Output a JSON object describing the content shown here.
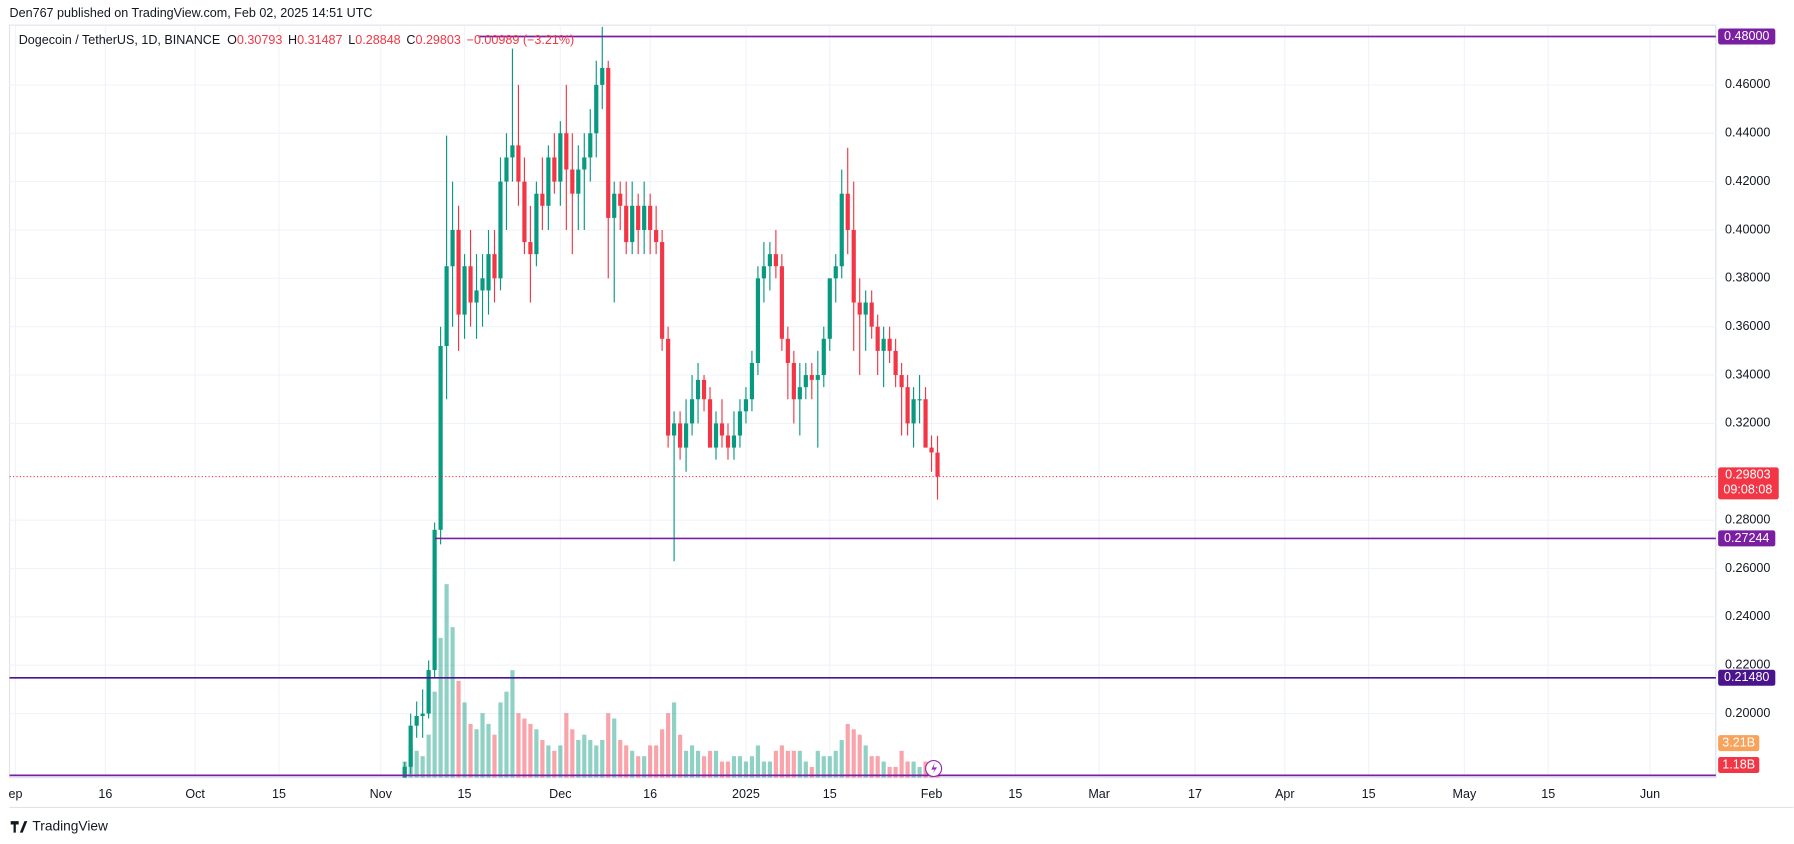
{
  "header": {
    "published": "Den767 published on TradingView.com, Feb 02, 2025 14:51 UTC",
    "symbol": "Dogecoin / TetherUS, 1D, BINANCE",
    "o_key": "O",
    "o_val": "0.30793",
    "h_key": "H",
    "h_val": "0.31487",
    "l_key": "L",
    "l_val": "0.28848",
    "c_key": "C",
    "c_val": "0.29803",
    "change": "−0.00989 (−3.21%)",
    "countdown": "09:08:08",
    "brand": "TradingView"
  },
  "chart_data": {
    "type": "candlestick",
    "up_color": "#089981",
    "down_color": "#f23645",
    "grid": true,
    "x": [
      "2024-11-05",
      "2024-11-06",
      "2024-11-07",
      "2024-11-08",
      "2024-11-09",
      "2024-11-10",
      "2024-11-11",
      "2024-11-12",
      "2024-11-13",
      "2024-11-14",
      "2024-11-15",
      "2024-11-16",
      "2024-11-17",
      "2024-11-18",
      "2024-11-19",
      "2024-11-20",
      "2024-11-21",
      "2024-11-22",
      "2024-11-23",
      "2024-11-24",
      "2024-11-25",
      "2024-11-26",
      "2024-11-27",
      "2024-11-28",
      "2024-11-29",
      "2024-11-30",
      "2024-12-01",
      "2024-12-02",
      "2024-12-03",
      "2024-12-04",
      "2024-12-05",
      "2024-12-06",
      "2024-12-07",
      "2024-12-08",
      "2024-12-09",
      "2024-12-10",
      "2024-12-11",
      "2024-12-12",
      "2024-12-13",
      "2024-12-14",
      "2024-12-15",
      "2024-12-16",
      "2024-12-17",
      "2024-12-18",
      "2024-12-19",
      "2024-12-20",
      "2024-12-21",
      "2024-12-22",
      "2024-12-23",
      "2024-12-24",
      "2024-12-25",
      "2024-12-26",
      "2024-12-27",
      "2024-12-28",
      "2024-12-29",
      "2024-12-30",
      "2024-12-31",
      "2025-01-01",
      "2025-01-02",
      "2025-01-03",
      "2025-01-04",
      "2025-01-05",
      "2025-01-06",
      "2025-01-07",
      "2025-01-08",
      "2025-01-09",
      "2025-01-10",
      "2025-01-11",
      "2025-01-12",
      "2025-01-13",
      "2025-01-14",
      "2025-01-15",
      "2025-01-16",
      "2025-01-17",
      "2025-01-18",
      "2025-01-19",
      "2025-01-20",
      "2025-01-21",
      "2025-01-22",
      "2025-01-23",
      "2025-01-24",
      "2025-01-25",
      "2025-01-26",
      "2025-01-27",
      "2025-01-28",
      "2025-01-29",
      "2025-01-30",
      "2025-01-31",
      "2025-02-01",
      "2025-02-02"
    ],
    "open": [
      0.17,
      0.178,
      0.195,
      0.199,
      0.2,
      0.218,
      0.276,
      0.352,
      0.385,
      0.4,
      0.365,
      0.385,
      0.37,
      0.375,
      0.375,
      0.39,
      0.38,
      0.42,
      0.43,
      0.435,
      0.42,
      0.395,
      0.39,
      0.415,
      0.41,
      0.43,
      0.42,
      0.44,
      0.425,
      0.415,
      0.425,
      0.43,
      0.44,
      0.46,
      0.467,
      0.405,
      0.415,
      0.41,
      0.395,
      0.41,
      0.4,
      0.41,
      0.4,
      0.395,
      0.355,
      0.315,
      0.32,
      0.31,
      0.32,
      0.33,
      0.338,
      0.33,
      0.31,
      0.32,
      0.315,
      0.31,
      0.315,
      0.325,
      0.33,
      0.345,
      0.38,
      0.385,
      0.39,
      0.385,
      0.355,
      0.345,
      0.33,
      0.335,
      0.34,
      0.338,
      0.34,
      0.355,
      0.38,
      0.385,
      0.415,
      0.4,
      0.37,
      0.365,
      0.37,
      0.36,
      0.35,
      0.355,
      0.35,
      0.34,
      0.335,
      0.32,
      0.33,
      0.33,
      0.31,
      0.30793
    ],
    "high": [
      0.18,
      0.2,
      0.205,
      0.21,
      0.222,
      0.279,
      0.36,
      0.439,
      0.42,
      0.41,
      0.39,
      0.4,
      0.39,
      0.39,
      0.4,
      0.4,
      0.43,
      0.44,
      0.475,
      0.46,
      0.43,
      0.41,
      0.42,
      0.43,
      0.435,
      0.44,
      0.445,
      0.46,
      0.44,
      0.435,
      0.44,
      0.45,
      0.47,
      0.484,
      0.47,
      0.42,
      0.42,
      0.42,
      0.42,
      0.415,
      0.42,
      0.415,
      0.41,
      0.4,
      0.36,
      0.325,
      0.325,
      0.33,
      0.34,
      0.345,
      0.34,
      0.335,
      0.325,
      0.33,
      0.32,
      0.325,
      0.33,
      0.335,
      0.35,
      0.385,
      0.395,
      0.395,
      0.4,
      0.39,
      0.36,
      0.35,
      0.345,
      0.345,
      0.345,
      0.35,
      0.36,
      0.38,
      0.39,
      0.425,
      0.434,
      0.42,
      0.38,
      0.375,
      0.375,
      0.365,
      0.36,
      0.36,
      0.355,
      0.345,
      0.34,
      0.335,
      0.34,
      0.335,
      0.315,
      0.31487
    ],
    "low": [
      0.165,
      0.175,
      0.19,
      0.19,
      0.198,
      0.215,
      0.27,
      0.33,
      0.36,
      0.35,
      0.355,
      0.36,
      0.355,
      0.36,
      0.365,
      0.37,
      0.375,
      0.4,
      0.42,
      0.41,
      0.39,
      0.37,
      0.385,
      0.4,
      0.4,
      0.415,
      0.41,
      0.4,
      0.39,
      0.4,
      0.4,
      0.42,
      0.43,
      0.45,
      0.38,
      0.37,
      0.4,
      0.39,
      0.39,
      0.39,
      0.39,
      0.39,
      0.39,
      0.35,
      0.31,
      0.263,
      0.305,
      0.3,
      0.315,
      0.32,
      0.325,
      0.31,
      0.305,
      0.31,
      0.305,
      0.305,
      0.31,
      0.32,
      0.325,
      0.34,
      0.37,
      0.375,
      0.38,
      0.35,
      0.33,
      0.32,
      0.315,
      0.33,
      0.33,
      0.31,
      0.335,
      0.35,
      0.37,
      0.38,
      0.39,
      0.35,
      0.34,
      0.35,
      0.355,
      0.34,
      0.335,
      0.345,
      0.335,
      0.315,
      0.315,
      0.31,
      0.32,
      0.31,
      0.3,
      0.28848
    ],
    "close": [
      0.178,
      0.195,
      0.199,
      0.2,
      0.218,
      0.276,
      0.352,
      0.385,
      0.4,
      0.365,
      0.385,
      0.37,
      0.375,
      0.38,
      0.39,
      0.38,
      0.42,
      0.43,
      0.435,
      0.42,
      0.395,
      0.39,
      0.415,
      0.41,
      0.43,
      0.42,
      0.44,
      0.425,
      0.415,
      0.425,
      0.43,
      0.44,
      0.46,
      0.467,
      0.405,
      0.415,
      0.41,
      0.395,
      0.41,
      0.4,
      0.41,
      0.4,
      0.395,
      0.355,
      0.315,
      0.32,
      0.31,
      0.32,
      0.33,
      0.338,
      0.33,
      0.31,
      0.32,
      0.315,
      0.31,
      0.315,
      0.325,
      0.33,
      0.345,
      0.38,
      0.385,
      0.39,
      0.385,
      0.355,
      0.345,
      0.33,
      0.335,
      0.34,
      0.338,
      0.34,
      0.355,
      0.38,
      0.385,
      0.415,
      0.4,
      0.37,
      0.365,
      0.37,
      0.36,
      0.35,
      0.355,
      0.35,
      0.34,
      0.335,
      0.32,
      0.33,
      0.33,
      0.31,
      0.308,
      0.29803
    ],
    "volume": [
      1.5,
      3,
      2.5,
      2,
      4,
      8,
      13,
      18,
      14,
      9,
      7,
      5,
      4.5,
      6,
      5,
      4,
      7,
      8,
      10,
      6,
      5.5,
      5,
      4.5,
      3.5,
      3,
      2.5,
      3,
      6,
      4.5,
      3.5,
      4,
      3.5,
      3,
      3.5,
      6,
      5.5,
      3.5,
      3,
      2.5,
      2,
      2,
      3,
      3,
      4.5,
      6,
      7,
      4,
      2.5,
      3,
      2.5,
      2,
      2.5,
      2.5,
      1.5,
      1.5,
      2,
      2,
      1.5,
      2,
      3,
      1.5,
      1.5,
      2.5,
      3,
      2.5,
      2.5,
      2.5,
      1.5,
      1,
      2.5,
      2,
      2,
      2.5,
      3.5,
      5,
      4.5,
      4,
      3,
      2,
      2,
      1.5,
      1,
      1,
      2.5,
      1.5,
      1.5,
      1,
      1.5,
      1,
      1.18
    ],
    "volume_lim": [
      0,
      70
    ],
    "volume_labels": [
      {
        "value": 3.21,
        "label": "3.21B"
      },
      {
        "value": 1.18,
        "label": "1.18B"
      }
    ],
    "xlim": [
      "2024-08-31",
      "2025-06-12"
    ],
    "xticks": [
      {
        "value": "2024-09-01",
        "label": "ep"
      },
      {
        "value": "2024-09-16",
        "label": "16"
      },
      {
        "value": "2024-10-01",
        "label": "Oct"
      },
      {
        "value": "2024-10-15",
        "label": "15"
      },
      {
        "value": "2024-11-01",
        "label": "Nov"
      },
      {
        "value": "2024-11-15",
        "label": "15"
      },
      {
        "value": "2024-12-01",
        "label": "Dec"
      },
      {
        "value": "2024-12-16",
        "label": "16"
      },
      {
        "value": "2025-01-01",
        "label": "2025"
      },
      {
        "value": "2025-01-15",
        "label": "15"
      },
      {
        "value": "2025-02-01",
        "label": "Feb"
      },
      {
        "value": "2025-02-15",
        "label": "15"
      },
      {
        "value": "2025-03-01",
        "label": "Mar"
      },
      {
        "value": "2025-03-17",
        "label": "17"
      },
      {
        "value": "2025-04-01",
        "label": "Apr"
      },
      {
        "value": "2025-04-15",
        "label": "15"
      },
      {
        "value": "2025-05-01",
        "label": "May"
      },
      {
        "value": "2025-05-15",
        "label": "15"
      },
      {
        "value": "2025-06-01",
        "label": "Jun"
      }
    ],
    "ylim": [
      0.1735,
      0.4847
    ],
    "yticks": [
      {
        "value": 0.2,
        "label": "0.20000"
      },
      {
        "value": 0.22,
        "label": "0.22000"
      },
      {
        "value": 0.24,
        "label": "0.24000"
      },
      {
        "value": 0.26,
        "label": "0.26000"
      },
      {
        "value": 0.28,
        "label": "0.28000"
      },
      {
        "value": 0.32,
        "label": "0.32000"
      },
      {
        "value": 0.34,
        "label": "0.34000"
      },
      {
        "value": 0.36,
        "label": "0.36000"
      },
      {
        "value": 0.38,
        "label": "0.38000"
      },
      {
        "value": 0.4,
        "label": "0.40000"
      },
      {
        "value": 0.42,
        "label": "0.42000"
      },
      {
        "value": 0.44,
        "label": "0.44000"
      },
      {
        "value": 0.46,
        "label": "0.46000"
      }
    ],
    "levels": [
      {
        "value": 0.48,
        "label": "0.48000",
        "color": "#7b1fa2"
      },
      {
        "value": 0.27244,
        "label": "0.27244",
        "color": "#7b1fa2"
      },
      {
        "value": 0.2148,
        "label": "0.21480",
        "color": "#4a148c"
      }
    ],
    "last_price": {
      "value": 0.29803,
      "label": "0.29803"
    }
  }
}
